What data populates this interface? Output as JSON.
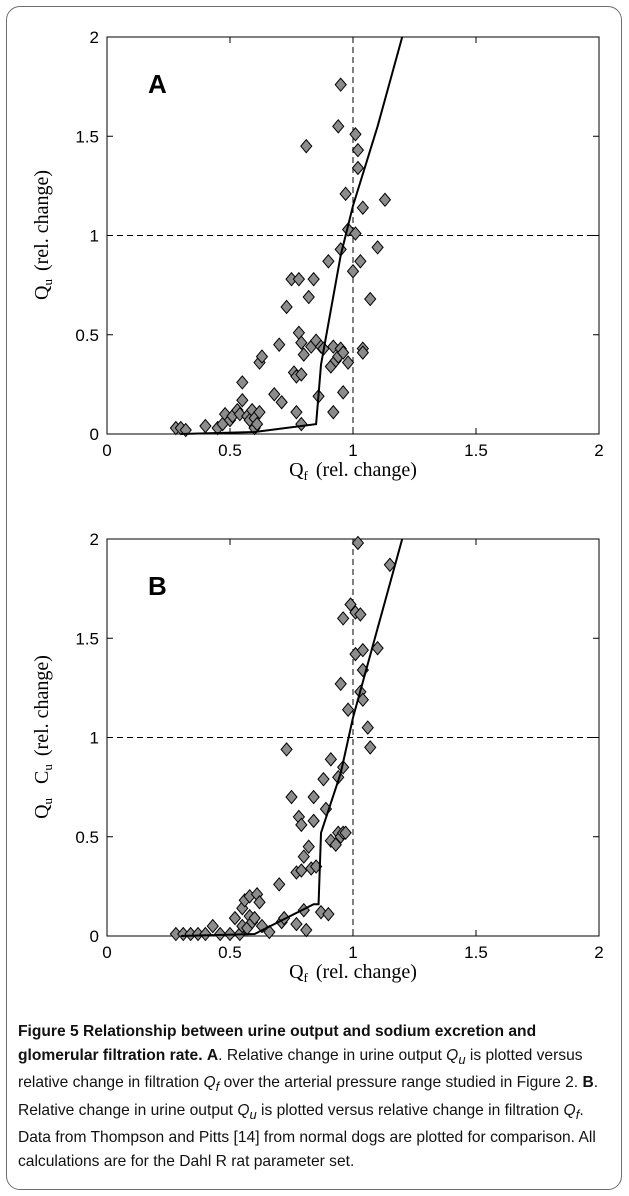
{
  "chart_data": [
    {
      "type": "scatter",
      "panel_label": "A",
      "xlabel": {
        "main": "Q",
        "sub": "f",
        "rest": "(rel. change)"
      },
      "ylabel": {
        "main": "Q",
        "sub": "u",
        "rest": "(rel. change)"
      },
      "xlim": [
        0,
        2
      ],
      "ylim": [
        0,
        2
      ],
      "xticks": [
        "0",
        "0.5",
        "1",
        "1.5",
        "2"
      ],
      "yticks": [
        "0",
        "0.5",
        "1",
        "1.5",
        "2"
      ],
      "reference_lines": {
        "x": 1,
        "y": 1,
        "style": "dashed"
      },
      "marker_color": "#8c8c8c",
      "points": [
        [
          0.28,
          0.03
        ],
        [
          0.3,
          0.03
        ],
        [
          0.32,
          0.02
        ],
        [
          0.4,
          0.04
        ],
        [
          0.45,
          0.03
        ],
        [
          0.47,
          0.05
        ],
        [
          0.48,
          0.1
        ],
        [
          0.5,
          0.07
        ],
        [
          0.51,
          0.09
        ],
        [
          0.53,
          0.12
        ],
        [
          0.54,
          0.1
        ],
        [
          0.55,
          0.17
        ],
        [
          0.55,
          0.26
        ],
        [
          0.57,
          0.09
        ],
        [
          0.58,
          0.07
        ],
        [
          0.59,
          0.12
        ],
        [
          0.6,
          0.03
        ],
        [
          0.6,
          0.08
        ],
        [
          0.61,
          0.05
        ],
        [
          0.62,
          0.11
        ],
        [
          0.62,
          0.36
        ],
        [
          0.63,
          0.39
        ],
        [
          0.68,
          0.2
        ],
        [
          0.7,
          0.45
        ],
        [
          0.71,
          0.16
        ],
        [
          0.73,
          0.64
        ],
        [
          0.75,
          0.78
        ],
        [
          0.76,
          0.31
        ],
        [
          0.77,
          0.29
        ],
        [
          0.77,
          0.11
        ],
        [
          0.78,
          0.51
        ],
        [
          0.78,
          0.78
        ],
        [
          0.79,
          0.3
        ],
        [
          0.79,
          0.46
        ],
        [
          0.79,
          0.05
        ],
        [
          0.8,
          0.4
        ],
        [
          0.81,
          1.45
        ],
        [
          0.82,
          0.69
        ],
        [
          0.83,
          0.44
        ],
        [
          0.84,
          0.78
        ],
        [
          0.85,
          0.47
        ],
        [
          0.86,
          0.19
        ],
        [
          0.87,
          0.44
        ],
        [
          0.88,
          0.43
        ],
        [
          0.9,
          0.87
        ],
        [
          0.91,
          0.34
        ],
        [
          0.92,
          0.44
        ],
        [
          0.92,
          0.11
        ],
        [
          0.93,
          0.37
        ],
        [
          0.94,
          0.39
        ],
        [
          0.94,
          1.55
        ],
        [
          0.95,
          0.93
        ],
        [
          0.95,
          0.43
        ],
        [
          0.95,
          1.76
        ],
        [
          0.96,
          0.21
        ],
        [
          0.96,
          0.41
        ],
        [
          0.97,
          1.21
        ],
        [
          0.98,
          0.36
        ],
        [
          0.98,
          1.03
        ],
        [
          1.0,
          0.82
        ],
        [
          1.01,
          1.01
        ],
        [
          1.01,
          1.51
        ],
        [
          1.02,
          1.43
        ],
        [
          1.02,
          1.34
        ],
        [
          1.03,
          0.87
        ],
        [
          1.04,
          0.43
        ],
        [
          1.04,
          0.41
        ],
        [
          1.04,
          1.14
        ],
        [
          1.07,
          0.68
        ],
        [
          1.1,
          0.94
        ],
        [
          1.13,
          1.18
        ]
      ],
      "model_line": [
        [
          0.3,
          0
        ],
        [
          0.6,
          0.01
        ],
        [
          0.85,
          0.05
        ],
        [
          0.87,
          0.35
        ],
        [
          0.95,
          0.9
        ],
        [
          1.0,
          1.15
        ],
        [
          1.1,
          1.55
        ],
        [
          1.2,
          2.0
        ]
      ]
    },
    {
      "type": "scatter",
      "panel_label": "B",
      "xlabel": {
        "main": "Q",
        "sub": "f",
        "rest": "(rel. change)"
      },
      "ylabel": {
        "main": "Q",
        "sub": "u",
        "main2": "C",
        "sub2": "u",
        "rest": "(rel. change)"
      },
      "xlim": [
        0,
        2
      ],
      "ylim": [
        0,
        2
      ],
      "xticks": [
        "0",
        "0.5",
        "1",
        "1.5",
        "2"
      ],
      "yticks": [
        "0",
        "0.5",
        "1",
        "1.5",
        "2"
      ],
      "reference_lines": {
        "x": 1,
        "y": 1,
        "style": "dashed"
      },
      "marker_color": "#8c8c8c",
      "points": [
        [
          0.28,
          0.01
        ],
        [
          0.31,
          0.01
        ],
        [
          0.34,
          0.01
        ],
        [
          0.37,
          0.01
        ],
        [
          0.4,
          0.01
        ],
        [
          0.43,
          0.05
        ],
        [
          0.46,
          0.01
        ],
        [
          0.5,
          0.01
        ],
        [
          0.52,
          0.09
        ],
        [
          0.54,
          0.01
        ],
        [
          0.55,
          0.05
        ],
        [
          0.55,
          0.14
        ],
        [
          0.56,
          0.18
        ],
        [
          0.57,
          0.04
        ],
        [
          0.58,
          0.1
        ],
        [
          0.58,
          0.2
        ],
        [
          0.59,
          0.07
        ],
        [
          0.6,
          0.09
        ],
        [
          0.61,
          0.21
        ],
        [
          0.62,
          0.17
        ],
        [
          0.63,
          0.05
        ],
        [
          0.66,
          0.02
        ],
        [
          0.7,
          0.26
        ],
        [
          0.71,
          0.07
        ],
        [
          0.72,
          0.09
        ],
        [
          0.73,
          0.94
        ],
        [
          0.75,
          0.7
        ],
        [
          0.77,
          0.32
        ],
        [
          0.77,
          0.06
        ],
        [
          0.78,
          0.6
        ],
        [
          0.79,
          0.33
        ],
        [
          0.79,
          0.56
        ],
        [
          0.8,
          0.4
        ],
        [
          0.8,
          0.13
        ],
        [
          0.81,
          0.03
        ],
        [
          0.82,
          0.45
        ],
        [
          0.83,
          0.34
        ],
        [
          0.84,
          0.58
        ],
        [
          0.84,
          0.7
        ],
        [
          0.85,
          0.35
        ],
        [
          0.87,
          0.12
        ],
        [
          0.88,
          0.79
        ],
        [
          0.89,
          0.64
        ],
        [
          0.9,
          0.11
        ],
        [
          0.91,
          0.48
        ],
        [
          0.91,
          0.89
        ],
        [
          0.93,
          0.46
        ],
        [
          0.94,
          0.8
        ],
        [
          0.94,
          0.52
        ],
        [
          0.95,
          1.27
        ],
        [
          0.95,
          0.5
        ],
        [
          0.96,
          0.85
        ],
        [
          0.96,
          0.52
        ],
        [
          0.96,
          1.6
        ],
        [
          0.97,
          0.52
        ],
        [
          0.98,
          1.14
        ],
        [
          0.99,
          1.67
        ],
        [
          1.01,
          1.63
        ],
        [
          1.01,
          1.42
        ],
        [
          1.02,
          1.98
        ],
        [
          1.03,
          1.23
        ],
        [
          1.03,
          1.62
        ],
        [
          1.04,
          1.34
        ],
        [
          1.04,
          1.44
        ],
        [
          1.04,
          1.19
        ],
        [
          1.06,
          1.05
        ],
        [
          1.07,
          0.95
        ],
        [
          1.1,
          1.45
        ],
        [
          1.15,
          1.87
        ]
      ],
      "model_line": [
        [
          0.3,
          0
        ],
        [
          0.6,
          0.01
        ],
        [
          0.84,
          0.16
        ],
        [
          0.86,
          0.16
        ],
        [
          0.87,
          0.52
        ],
        [
          0.95,
          0.82
        ],
        [
          1.0,
          1.1
        ],
        [
          1.1,
          1.55
        ],
        [
          1.2,
          2.0
        ]
      ]
    }
  ],
  "caption": {
    "title": "Figure 5 Relationship between urine output and sodium excretion and glomerular filtration rate.",
    "label_a": "A",
    "text_a_1": ". Relative change in urine output ",
    "qu_a": "Q",
    "qu_a_sub": "u",
    "text_a_2": " is plotted versus relative change in filtration ",
    "qf_a": "Q",
    "qf_a_sub": "f",
    "text_a_3": " over the arterial pressure range studied in Figure 2. ",
    "label_b": "B",
    "text_b_1": ". Relative change in urine output ",
    "qu_b": "Q",
    "qu_b_sub": "u",
    "text_b_2": " is plotted versus relative change in filtration ",
    "qf_b": "Q",
    "qf_b_sub": "f",
    "text_b_3": ". Data from Thompson and Pitts [14] from normal dogs are plotted for comparison. All calculations are for the Dahl R rat parameter set."
  }
}
